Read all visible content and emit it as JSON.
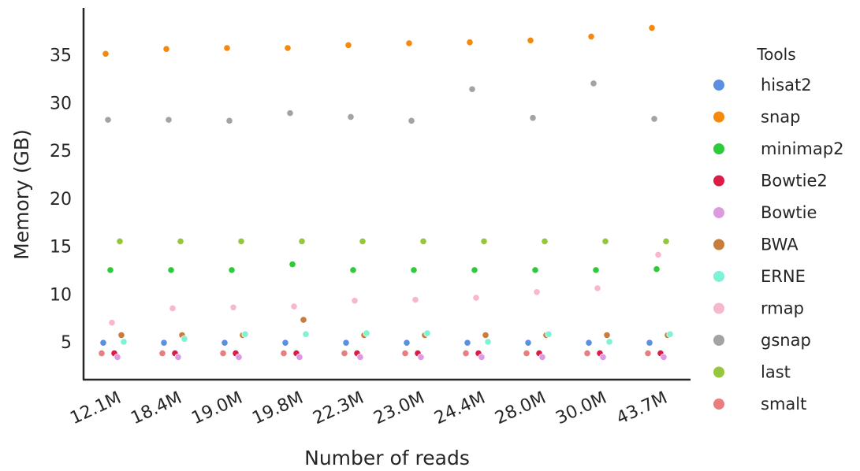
{
  "chart_data": {
    "type": "scatter",
    "xlabel": "Number of reads",
    "ylabel": "Memory (GB)",
    "categories": [
      "12.1M",
      "18.4M",
      "19.0M",
      "19.8M",
      "22.3M",
      "23.0M",
      "24.4M",
      "28.0M",
      "30.0M",
      "43.7M"
    ],
    "ylim": [
      1,
      39
    ],
    "yticks": [
      5,
      10,
      15,
      20,
      25,
      30,
      35
    ],
    "grid": false,
    "legend": {
      "title": "Tools",
      "placement": "right-outside"
    },
    "series": [
      {
        "name": "hisat2",
        "color": "#5b8fdf",
        "values": [
          4.9,
          4.9,
          4.9,
          4.9,
          4.9,
          4.9,
          4.9,
          4.9,
          4.9,
          4.9
        ]
      },
      {
        "name": "snap",
        "color": "#f5890e",
        "values": [
          35.1,
          35.6,
          35.7,
          35.7,
          36.0,
          36.2,
          36.3,
          36.5,
          36.9,
          37.8
        ]
      },
      {
        "name": "minimap2",
        "color": "#2fca3c",
        "values": [
          12.5,
          12.5,
          12.5,
          13.1,
          12.5,
          12.5,
          12.5,
          12.5,
          12.5,
          12.6
        ]
      },
      {
        "name": "Bowtie2",
        "color": "#dc1c46",
        "values": [
          3.8,
          3.8,
          3.8,
          3.8,
          3.8,
          3.8,
          3.8,
          3.8,
          3.8,
          3.8
        ]
      },
      {
        "name": "Bowtie",
        "color": "#dc9ae0",
        "values": [
          3.4,
          3.4,
          3.4,
          3.4,
          3.4,
          3.4,
          3.4,
          3.4,
          3.4,
          3.4
        ]
      },
      {
        "name": "BWA",
        "color": "#c77d3e",
        "values": [
          5.7,
          5.7,
          5.7,
          7.3,
          5.7,
          5.7,
          5.7,
          5.7,
          5.7,
          5.7
        ]
      },
      {
        "name": "ERNE",
        "color": "#7ef3d3",
        "values": [
          5.0,
          5.3,
          5.8,
          5.8,
          5.9,
          5.9,
          5.0,
          5.8,
          5.0,
          5.8
        ]
      },
      {
        "name": "rmap",
        "color": "#f7b8cd",
        "values": [
          7.0,
          8.5,
          8.6,
          8.7,
          9.3,
          9.4,
          9.6,
          10.2,
          10.6,
          14.1
        ]
      },
      {
        "name": "gsnap",
        "color": "#a3a3a3",
        "values": [
          28.2,
          28.2,
          28.1,
          28.9,
          28.5,
          28.1,
          31.4,
          28.4,
          32.0,
          28.3
        ]
      },
      {
        "name": "last",
        "color": "#95c73c",
        "values": [
          15.5,
          15.5,
          15.5,
          15.5,
          15.5,
          15.5,
          15.5,
          15.5,
          15.5,
          15.5
        ]
      },
      {
        "name": "smalt",
        "color": "#ea7e7e",
        "values": [
          3.8,
          3.8,
          3.8,
          3.8,
          3.8,
          3.8,
          3.8,
          3.8,
          3.8,
          3.8
        ]
      }
    ]
  }
}
